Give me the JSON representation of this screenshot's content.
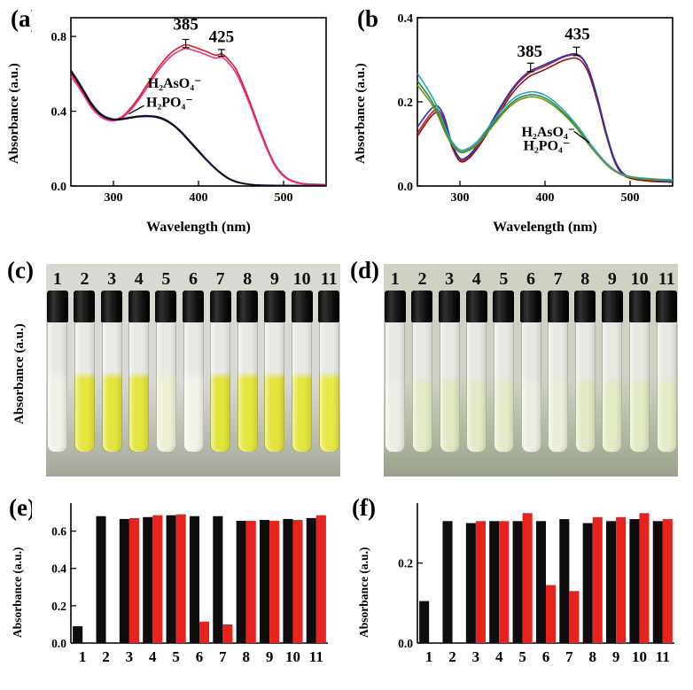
{
  "panels": {
    "a": {
      "label": "(a)",
      "ylabel": "Absorbance (a.u.)",
      "xlabel": "Wavelength (nm)"
    },
    "b": {
      "label": "(b)",
      "ylabel": "Absorbance (a.u.)",
      "xlabel": "Wavelength (nm)"
    },
    "c": {
      "label": "(c)",
      "ylabel": "Absorbance (a.u.)"
    },
    "d": {
      "label": "(d)"
    },
    "e": {
      "label": "(e)",
      "ylabel": "Absorbance (a.u.)"
    },
    "f": {
      "label": "(f)",
      "ylabel": "Absorbance (a.u.)"
    }
  },
  "chart_data": [
    {
      "id": "a",
      "type": "line",
      "title": "",
      "xlabel": "Wavelength (nm)",
      "ylabel": "Absorbance (a.u.)",
      "xlim": [
        250,
        550
      ],
      "ylim": [
        0,
        0.9
      ],
      "xticks": [
        300,
        400,
        500
      ],
      "yticks": [
        0.0,
        0.4,
        0.8
      ],
      "x": [
        250,
        258,
        266,
        274,
        282,
        290,
        300,
        310,
        320,
        330,
        340,
        350,
        360,
        370,
        380,
        385,
        392,
        400,
        410,
        420,
        428,
        436,
        444,
        452,
        462,
        472,
        482,
        492,
        505,
        520,
        535,
        550
      ],
      "series": [
        {
          "name": "H2AsO4- response red",
          "color": "#e01820",
          "y": [
            0.6,
            0.55,
            0.49,
            0.43,
            0.39,
            0.365,
            0.355,
            0.37,
            0.415,
            0.475,
            0.545,
            0.615,
            0.675,
            0.72,
            0.748,
            0.755,
            0.748,
            0.735,
            0.718,
            0.7,
            0.705,
            0.672,
            0.625,
            0.545,
            0.43,
            0.305,
            0.19,
            0.1,
            0.04,
            0.015,
            0.01,
            0.008
          ]
        },
        {
          "name": "H2AsO4- response magenta",
          "color": "#e8318b",
          "y": [
            0.585,
            0.537,
            0.478,
            0.42,
            0.382,
            0.357,
            0.349,
            0.363,
            0.405,
            0.462,
            0.53,
            0.6,
            0.658,
            0.702,
            0.728,
            0.735,
            0.729,
            0.717,
            0.7,
            0.684,
            0.688,
            0.655,
            0.605,
            0.528,
            0.415,
            0.292,
            0.18,
            0.093,
            0.036,
            0.013,
            0.009,
            0.007
          ]
        },
        {
          "name": "H2PO4- response navy",
          "color": "#1a1a70",
          "y": [
            0.62,
            0.565,
            0.505,
            0.445,
            0.4,
            0.372,
            0.358,
            0.36,
            0.368,
            0.374,
            0.376,
            0.372,
            0.358,
            0.33,
            0.29,
            0.265,
            0.23,
            0.19,
            0.14,
            0.095,
            0.065,
            0.04,
            0.025,
            0.015,
            0.008,
            0.005,
            0.004,
            0.003,
            0.003,
            0.002,
            0.002,
            0.002
          ]
        },
        {
          "name": "H2PO4- response black",
          "color": "#0a0a0a",
          "y": [
            0.612,
            0.557,
            0.497,
            0.438,
            0.394,
            0.367,
            0.354,
            0.356,
            0.364,
            0.37,
            0.372,
            0.368,
            0.353,
            0.325,
            0.284,
            0.259,
            0.224,
            0.184,
            0.135,
            0.091,
            0.061,
            0.037,
            0.022,
            0.013,
            0.007,
            0.004,
            0.003,
            0.003,
            0.002,
            0.002,
            0.002,
            0.002
          ]
        }
      ],
      "annotations": [
        {
          "text": "385",
          "x": 385,
          "y": 0.835,
          "fs": 19
        },
        {
          "text": "425",
          "x": 427,
          "y": 0.77,
          "fs": 19
        },
        {
          "text": "H₂AsO₄⁻",
          "x": 372,
          "y": 0.525,
          "fs": 16
        },
        {
          "text": "H₂PO₄⁻",
          "x": 366,
          "y": 0.425,
          "fs": 16
        }
      ],
      "errorbars": [
        {
          "x": 385,
          "y": 0.762,
          "e": 0.022
        },
        {
          "x": 427,
          "y": 0.712,
          "e": 0.018
        }
      ],
      "pointer_lines": [
        {
          "x1": 336,
          "y1": 0.43,
          "x2": 318,
          "y2": 0.385
        }
      ]
    },
    {
      "id": "b",
      "type": "line",
      "title": "",
      "xlabel": "Wavelength (nm)",
      "ylabel": "Absorbance (a.u.)",
      "xlim": [
        250,
        550
      ],
      "ylim": [
        0,
        0.4
      ],
      "xticks": [
        300,
        400,
        500
      ],
      "yticks": [
        0.0,
        0.2,
        0.4
      ],
      "x": [
        250,
        258,
        266,
        274,
        282,
        290,
        300,
        310,
        320,
        330,
        340,
        350,
        360,
        370,
        380,
        385,
        392,
        400,
        410,
        420,
        428,
        436,
        444,
        452,
        462,
        472,
        482,
        492,
        505,
        520,
        535,
        550
      ],
      "series": [
        {
          "name": "H2AsO4- response red",
          "color": "#cc1820",
          "y": [
            0.125,
            0.15,
            0.172,
            0.182,
            0.155,
            0.1,
            0.062,
            0.068,
            0.092,
            0.123,
            0.158,
            0.192,
            0.223,
            0.248,
            0.266,
            0.272,
            0.278,
            0.285,
            0.295,
            0.305,
            0.31,
            0.312,
            0.302,
            0.272,
            0.205,
            0.125,
            0.06,
            0.028,
            0.018,
            0.014,
            0.012,
            0.011
          ]
        },
        {
          "name": "H2AsO4- response dark red",
          "color": "#8b1a1a",
          "y": [
            0.118,
            0.143,
            0.165,
            0.175,
            0.149,
            0.096,
            0.059,
            0.065,
            0.088,
            0.118,
            0.152,
            0.185,
            0.216,
            0.24,
            0.258,
            0.264,
            0.27,
            0.277,
            0.287,
            0.297,
            0.302,
            0.304,
            0.294,
            0.264,
            0.198,
            0.12,
            0.057,
            0.026,
            0.016,
            0.012,
            0.01,
            0.009
          ]
        },
        {
          "name": "H2AsO4- response blue",
          "color": "#2535c0",
          "y": [
            0.14,
            0.163,
            0.183,
            0.19,
            0.162,
            0.105,
            0.066,
            0.072,
            0.096,
            0.127,
            0.162,
            0.196,
            0.227,
            0.252,
            0.27,
            0.276,
            0.282,
            0.289,
            0.298,
            0.307,
            0.312,
            0.314,
            0.304,
            0.274,
            0.207,
            0.127,
            0.062,
            0.03,
            0.019,
            0.015,
            0.013,
            0.012
          ]
        },
        {
          "name": "H2PO4- response green",
          "color": "#2e8b2e",
          "y": [
            0.25,
            0.228,
            0.205,
            0.175,
            0.135,
            0.103,
            0.082,
            0.086,
            0.1,
            0.124,
            0.15,
            0.175,
            0.196,
            0.21,
            0.216,
            0.217,
            0.215,
            0.209,
            0.196,
            0.178,
            0.162,
            0.143,
            0.122,
            0.1,
            0.075,
            0.053,
            0.036,
            0.026,
            0.02,
            0.017,
            0.015,
            0.014
          ]
        },
        {
          "name": "H2PO4- response cyan",
          "color": "#1faabb",
          "y": [
            0.268,
            0.243,
            0.217,
            0.185,
            0.143,
            0.108,
            0.086,
            0.09,
            0.105,
            0.13,
            0.156,
            0.182,
            0.203,
            0.217,
            0.223,
            0.224,
            0.222,
            0.216,
            0.202,
            0.184,
            0.167,
            0.148,
            0.127,
            0.104,
            0.078,
            0.055,
            0.038,
            0.027,
            0.021,
            0.018,
            0.016,
            0.015
          ]
        },
        {
          "name": "H2PO4- response olive",
          "color": "#7a8b22",
          "y": [
            0.24,
            0.219,
            0.197,
            0.168,
            0.13,
            0.1,
            0.08,
            0.084,
            0.098,
            0.121,
            0.146,
            0.171,
            0.191,
            0.205,
            0.211,
            0.212,
            0.21,
            0.204,
            0.191,
            0.174,
            0.158,
            0.14,
            0.119,
            0.097,
            0.073,
            0.051,
            0.035,
            0.025,
            0.019,
            0.016,
            0.014,
            0.013
          ]
        }
      ],
      "annotations": [
        {
          "text": "385",
          "x": 382,
          "y": 0.307,
          "fs": 19
        },
        {
          "text": "435",
          "x": 438,
          "y": 0.348,
          "fs": 19
        },
        {
          "text": "H₂AsO₄⁻",
          "x": 404,
          "y": 0.118,
          "fs": 16
        },
        {
          "text": "H₂PO₄⁻",
          "x": 402,
          "y": 0.085,
          "fs": 16
        }
      ],
      "errorbars": [
        {
          "x": 383,
          "y": 0.282,
          "e": 0.01
        },
        {
          "x": 437,
          "y": 0.32,
          "e": 0.01
        }
      ],
      "pointer_lines": [
        {
          "x1": 434,
          "y1": 0.13,
          "x2": 452,
          "y2": 0.103
        }
      ]
    },
    {
      "id": "e",
      "type": "bar",
      "title": "",
      "ylabel": "Absorbance (a.u.)",
      "xlabel": "",
      "categories": [
        "1",
        "2",
        "3",
        "4",
        "5",
        "6",
        "7",
        "8",
        "9",
        "10",
        "11"
      ],
      "ylim": [
        0,
        0.75
      ],
      "yticks": [
        0.0,
        0.2,
        0.4,
        0.6
      ],
      "series": [
        {
          "name": "black",
          "color": "#0d0d0d",
          "values": [
            0.09,
            0.68,
            0.665,
            0.675,
            0.685,
            0.68,
            0.68,
            0.655,
            0.66,
            0.665,
            0.67
          ]
        },
        {
          "name": "red",
          "color": "#e8231f",
          "values": [
            null,
            null,
            0.67,
            0.685,
            0.69,
            0.115,
            0.1,
            0.655,
            0.655,
            0.66,
            0.685
          ]
        }
      ]
    },
    {
      "id": "f",
      "type": "bar",
      "title": "",
      "ylabel": "Absorbance (a.u.)",
      "xlabel": "",
      "categories": [
        "1",
        "2",
        "3",
        "4",
        "5",
        "6",
        "7",
        "8",
        "9",
        "10",
        "11"
      ],
      "ylim": [
        0,
        0.35
      ],
      "yticks": [
        0.0,
        0.2
      ],
      "series": [
        {
          "name": "black",
          "color": "#0d0d0d",
          "values": [
            0.105,
            0.305,
            0.3,
            0.305,
            0.305,
            0.305,
            0.31,
            0.3,
            0.305,
            0.31,
            0.305
          ]
        },
        {
          "name": "red",
          "color": "#e8231f",
          "values": [
            null,
            null,
            0.305,
            0.305,
            0.325,
            0.145,
            0.13,
            0.315,
            0.315,
            0.325,
            0.31
          ]
        }
      ]
    }
  ],
  "photos": {
    "c": {
      "labels": [
        "1",
        "2",
        "3",
        "4",
        "5",
        "6",
        "7",
        "8",
        "9",
        "10",
        "11"
      ],
      "bg": [
        "#d8d9d3",
        "#c6c8be",
        "#a3a79a"
      ],
      "air": "#e9eae4",
      "air_pct": 38,
      "liquids": [
        "#f2f1e9",
        "#e4e73f",
        "#e2e53c",
        "#e3e63e",
        "#eff0d8",
        "#f3f3ec",
        "#e2e43c",
        "#e4e63f",
        "#e3e53d",
        "#e4e640",
        "#e7e945"
      ]
    },
    "d": {
      "labels": [
        "1",
        "2",
        "3",
        "4",
        "5",
        "6",
        "7",
        "8",
        "9",
        "10",
        "11"
      ],
      "bg": [
        "#cdd2c4",
        "#b9c0ac",
        "#9aa18d"
      ],
      "air": "#e7e9e2",
      "air_pct": 42,
      "liquids": [
        "#edefe6",
        "#e2eac6",
        "#e0e8c2",
        "#e3ebc8",
        "#e4ecca",
        "#eceee4",
        "#e9efd8",
        "#e1e9c4",
        "#e3ebc7",
        "#e2eac5",
        "#e4ecc9"
      ]
    }
  }
}
